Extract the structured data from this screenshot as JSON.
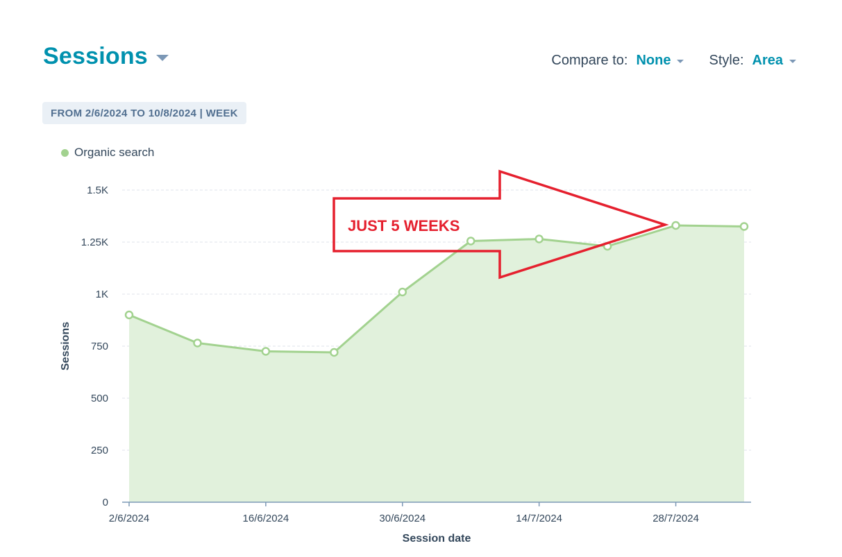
{
  "header": {
    "title": "Sessions",
    "compare_label": "Compare to:",
    "compare_value": "None",
    "style_label": "Style:",
    "style_value": "Area"
  },
  "date_range_badge": "FROM 2/6/2024 TO 10/8/2024 | WEEK",
  "annotation": {
    "text": "JUST 5 WEEKS",
    "color": "#e5202e"
  },
  "colors": {
    "accent": "#0091ae",
    "series": "#a2d28f",
    "area_fill": "#e1f1dc"
  },
  "chart_data": {
    "type": "area",
    "xlabel": "Session date",
    "ylabel": "Sessions",
    "ylim": [
      0,
      1500
    ],
    "y_ticks": [
      0,
      250,
      500,
      750,
      1000,
      1250,
      1500
    ],
    "y_tick_labels": [
      "0",
      "250",
      "500",
      "750",
      "1K",
      "1.25K",
      "1.5K"
    ],
    "x": [
      "2/6/2024",
      "9/6/2024",
      "16/6/2024",
      "23/6/2024",
      "30/6/2024",
      "7/7/2024",
      "14/7/2024",
      "21/7/2024",
      "28/7/2024",
      "4/8/2024"
    ],
    "x_tick_labels": [
      "2/6/2024",
      "16/6/2024",
      "30/6/2024",
      "14/7/2024",
      "28/7/2024"
    ],
    "series": [
      {
        "name": "Organic search",
        "values": [
          900,
          765,
          725,
          720,
          1010,
          1255,
          1265,
          1230,
          1330,
          1325
        ]
      }
    ],
    "grid": true,
    "legend": "top-left"
  }
}
